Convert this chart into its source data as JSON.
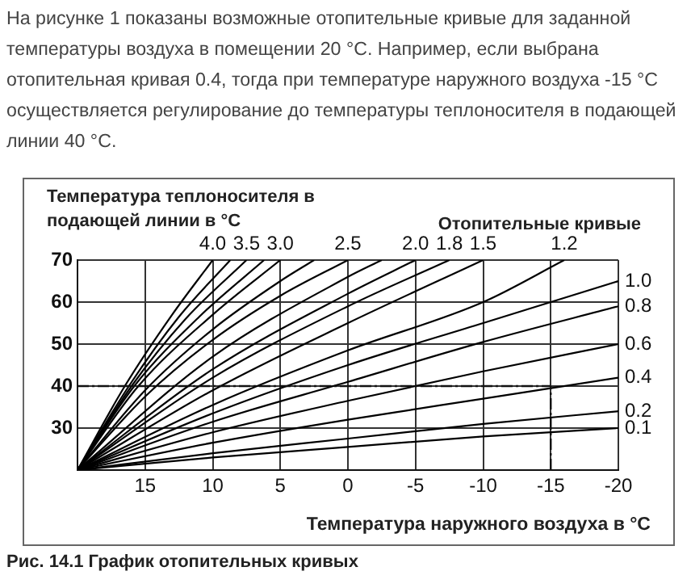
{
  "chart_data": {
    "type": "line",
    "annotations": [
      "На рисунке 1 показаны возможные отопительные кривые для заданной температуры воздуха в помещении 20 °C. Например, если выбрана отопительная кривая 0.4, тогда при температуре наружного воздуха -15 °C осуществляется регулирование до температуры теплоносителя в подающей линии 40 °C.",
      "Рис. 14.1  График отопительных кривых"
    ],
    "ylabel": "Температура теплоносителя в подающей линии в °C",
    "xlabel": "Температура наружного воздуха в °C",
    "legend_title": "Отопительные кривые",
    "xlim": [
      20,
      -20
    ],
    "xticks": [
      15,
      10,
      5,
      0,
      -5,
      -10,
      -15,
      -20
    ],
    "ylim": [
      20,
      70
    ],
    "yticks": [
      30,
      40,
      50,
      60,
      70
    ],
    "grid": true,
    "legend": false,
    "marker": "none",
    "line_style": "solid",
    "ref_lines": [
      {
        "axis": "y",
        "value": 40,
        "line_style": "dashed"
      },
      {
        "axis": "x",
        "value": -15,
        "line_style": "dashed"
      }
    ],
    "series": [
      {
        "name": "4.0",
        "color": "#000000",
        "x": [
          20,
          16.5,
          13,
          10
        ],
        "values": [
          20,
          40,
          57,
          70
        ]
      },
      {
        "color": "#000000",
        "x": [
          20,
          16.2,
          12.5,
          8.7
        ],
        "values": [
          20,
          40,
          56.5,
          70
        ]
      },
      {
        "name": "3.5",
        "color": "#000000",
        "x": [
          20,
          16,
          12,
          7.5
        ],
        "values": [
          20,
          40,
          56,
          70
        ]
      },
      {
        "color": "#000000",
        "x": [
          20,
          15.8,
          11,
          6.2
        ],
        "values": [
          20,
          40,
          56.5,
          70
        ]
      },
      {
        "name": "3.0",
        "color": "#000000",
        "x": [
          20,
          15.5,
          10,
          5
        ],
        "values": [
          20,
          40,
          57,
          70
        ]
      },
      {
        "color": "#000000",
        "x": [
          20,
          15,
          10,
          5,
          2.5
        ],
        "values": [
          20,
          39,
          53.5,
          65,
          70
        ]
      },
      {
        "name": "2.5",
        "color": "#000000",
        "x": [
          20,
          15,
          10,
          5,
          0
        ],
        "values": [
          20,
          37.5,
          51,
          61.5,
          70
        ]
      },
      {
        "color": "#000000",
        "x": [
          20,
          10,
          0,
          -2.5
        ],
        "values": [
          20,
          47,
          66,
          70
        ]
      },
      {
        "name": "2.0",
        "color": "#000000",
        "x": [
          20,
          10,
          0,
          -5
        ],
        "values": [
          20,
          44,
          62,
          70
        ]
      },
      {
        "name": "1.8",
        "color": "#000000",
        "x": [
          20,
          10,
          0,
          -7.5
        ],
        "values": [
          20,
          42,
          59,
          70
        ]
      },
      {
        "name": "1.5",
        "color": "#000000",
        "x": [
          20,
          10,
          0,
          -10
        ],
        "values": [
          20,
          39,
          55,
          70
        ]
      },
      {
        "name": "1.2",
        "color": "#000000",
        "x": [
          20,
          10,
          0,
          -10,
          -16
        ],
        "values": [
          20,
          35.5,
          48.5,
          60,
          70
        ]
      },
      {
        "name": "1.0",
        "color": "#000000",
        "x": [
          20,
          10,
          0,
          -10,
          -20
        ],
        "values": [
          20,
          33.5,
          45,
          55,
          65
        ]
      },
      {
        "name": "0.8",
        "color": "#000000",
        "x": [
          20,
          10,
          0,
          -10,
          -20
        ],
        "values": [
          20,
          31.5,
          41,
          50.5,
          59
        ]
      },
      {
        "name": "0.6",
        "color": "#000000",
        "x": [
          20,
          10,
          0,
          -10,
          -20
        ],
        "values": [
          20,
          29,
          36.5,
          43.5,
          50
        ]
      },
      {
        "name": "0.4",
        "color": "#000000",
        "x": [
          20,
          10,
          0,
          -10,
          -20
        ],
        "values": [
          20,
          26.5,
          32,
          37,
          42
        ]
      },
      {
        "name": "0.2",
        "color": "#000000",
        "x": [
          20,
          10,
          0,
          -10,
          -20
        ],
        "values": [
          20,
          24,
          27.5,
          31,
          34
        ]
      },
      {
        "name": "0.1",
        "color": "#000000",
        "x": [
          20,
          10,
          0,
          -10,
          -20
        ],
        "values": [
          20,
          23,
          25.5,
          28,
          30
        ]
      }
    ]
  }
}
